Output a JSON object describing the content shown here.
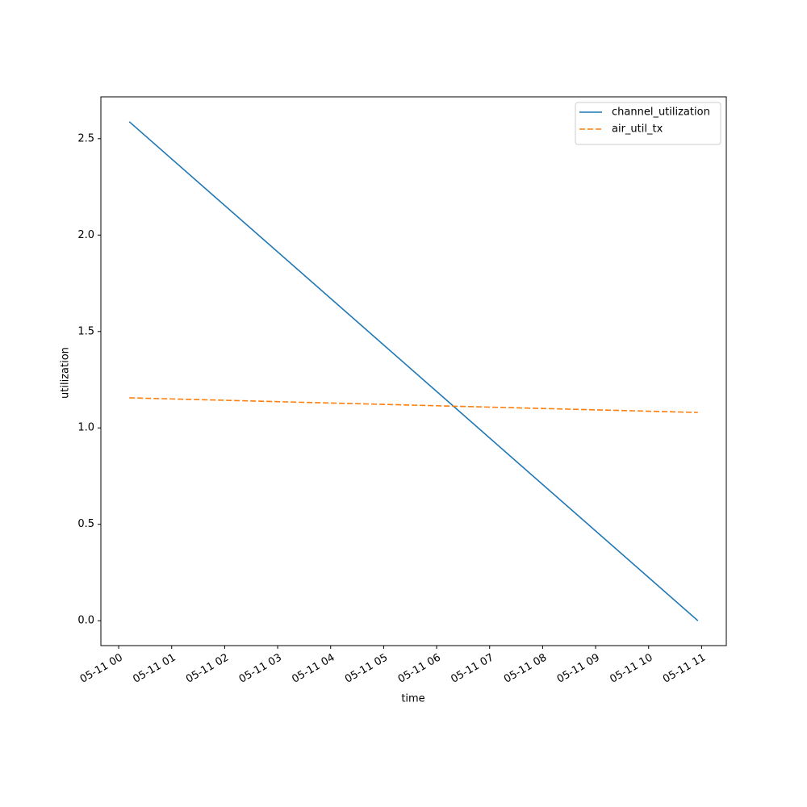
{
  "chart_data": {
    "type": "line",
    "xlabel": "time",
    "ylabel": "utilization",
    "x": [
      0.2,
      10.93
    ],
    "series": [
      {
        "name": "channel_utilization",
        "color": "#1f77b4",
        "dash": "solid",
        "values": [
          2.588,
          0.0
        ]
      },
      {
        "name": "air_util_tx",
        "color": "#ff7f0e",
        "dash": "dashed",
        "values": [
          1.156,
          1.08
        ]
      }
    ],
    "xlim": [
      -0.336,
      11.466
    ],
    "xticks": [
      {
        "value": 0,
        "label": "05-11 00"
      },
      {
        "value": 1,
        "label": "05-11 01"
      },
      {
        "value": 2,
        "label": "05-11 02"
      },
      {
        "value": 3,
        "label": "05-11 03"
      },
      {
        "value": 4,
        "label": "05-11 04"
      },
      {
        "value": 5,
        "label": "05-11 05"
      },
      {
        "value": 6,
        "label": "05-11 06"
      },
      {
        "value": 7,
        "label": "05-11 07"
      },
      {
        "value": 8,
        "label": "05-11 08"
      },
      {
        "value": 9,
        "label": "05-11 09"
      },
      {
        "value": 10,
        "label": "05-11 10"
      },
      {
        "value": 11,
        "label": "05-11 11"
      }
    ],
    "ylim": [
      -0.129,
      2.717
    ],
    "yticks": [
      {
        "value": 0,
        "label": "0.0"
      },
      0.5,
      {
        "value": 1,
        "label": "1.0"
      },
      1.5,
      {
        "value": 2,
        "label": "2.0"
      },
      2.5
    ],
    "legend": "upper right",
    "grid": false
  }
}
